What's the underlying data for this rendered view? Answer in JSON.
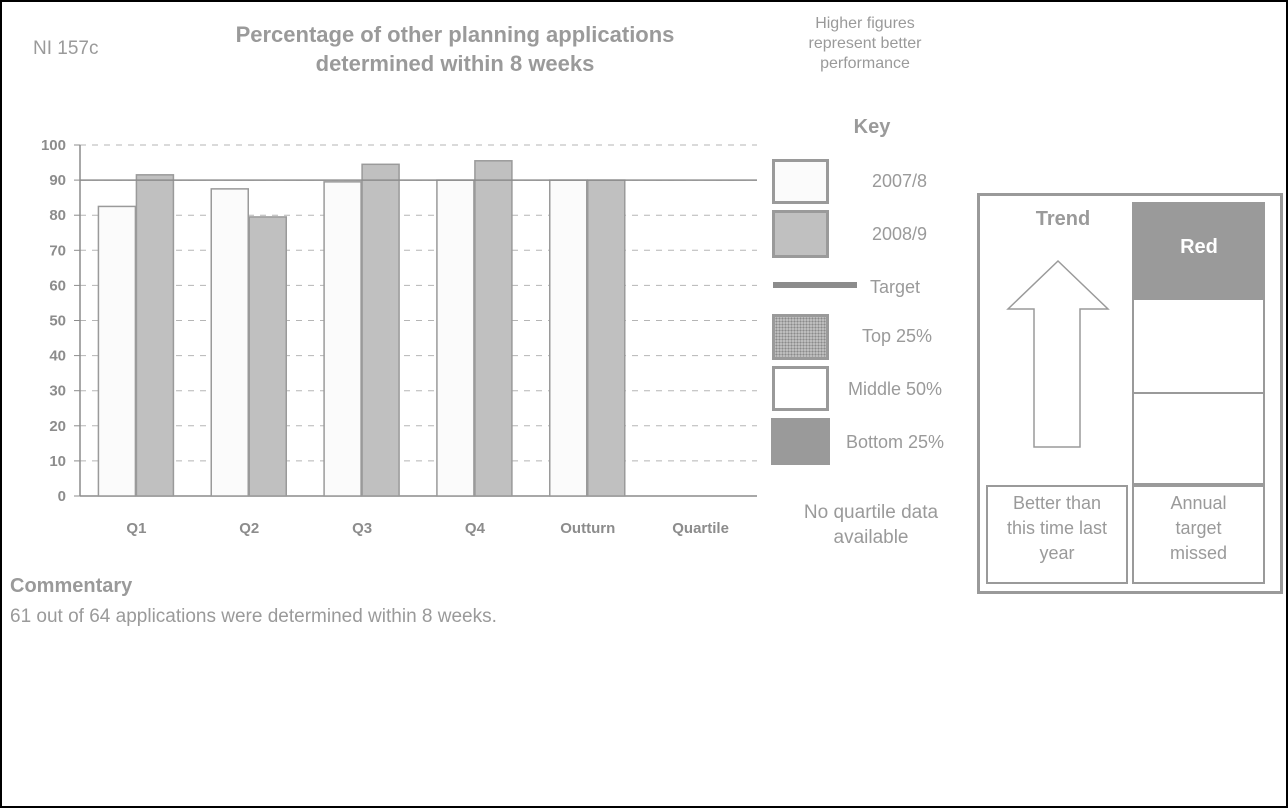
{
  "indicator_code": "NI 157c",
  "title_line1": "Percentage of other planning applications",
  "title_line2": "determined within 8 weeks",
  "note_line1": "Higher figures",
  "note_line2": "represent better",
  "note_line3": "performance",
  "key": {
    "title": "Key",
    "items": [
      {
        "label": "2007/8",
        "color": "#fbfbfb"
      },
      {
        "label": "2008/9",
        "color": "#c0c0c0"
      },
      {
        "label": "Target",
        "color": "#8c8c8c"
      },
      {
        "label": "Top 25%",
        "color": "#bdbdbd"
      },
      {
        "label": "Middle 50%",
        "color": "#ffffff"
      },
      {
        "label": "Bottom 25%",
        "color": "#9a9a9a"
      }
    ]
  },
  "no_quartile_line1": "No quartile data",
  "no_quartile_line2": "available",
  "trend": {
    "label": "Trend",
    "direction": "up",
    "caption_line1": "Better than",
    "caption_line2": "this time last",
    "caption_line3": "year"
  },
  "status": {
    "label": "Red",
    "color": "#9a9a9a",
    "caption_line1": "Annual",
    "caption_line2": "target",
    "caption_line3": "missed"
  },
  "commentary": {
    "title": "Commentary",
    "text": "61 out of 64 applications were determined within 8 weeks."
  },
  "chart_data": {
    "type": "bar",
    "categories": [
      "Q1",
      "Q2",
      "Q3",
      "Q4",
      "Outturn",
      "Quartile"
    ],
    "series": [
      {
        "name": "2007/8",
        "values": [
          82.5,
          87.5,
          89.5,
          90,
          90,
          null
        ],
        "color": "#fbfbfb"
      },
      {
        "name": "2008/9",
        "values": [
          91.5,
          79.5,
          94.5,
          95.5,
          90,
          null
        ],
        "color": "#c0c0c0"
      }
    ],
    "target": 90,
    "ylim": [
      0,
      100
    ],
    "yticks": [
      0,
      10,
      20,
      30,
      40,
      50,
      60,
      70,
      80,
      90,
      100
    ],
    "grid": true,
    "xlabel": "",
    "ylabel": ""
  }
}
